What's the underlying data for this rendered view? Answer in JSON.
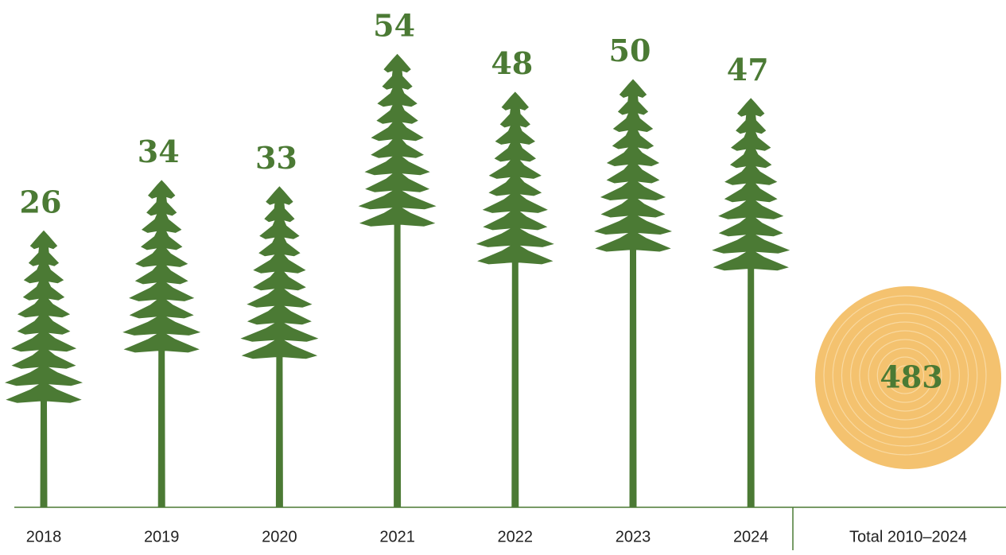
{
  "chart_data": {
    "type": "bar",
    "categories": [
      "2018",
      "2019",
      "2020",
      "2021",
      "2022",
      "2023",
      "2024"
    ],
    "values": [
      26,
      34,
      33,
      54,
      48,
      50,
      47
    ],
    "color": "#4b7a34",
    "total_label": "Total 2010–2024",
    "total_value": 483,
    "total_color": "#f4c26f"
  }
}
